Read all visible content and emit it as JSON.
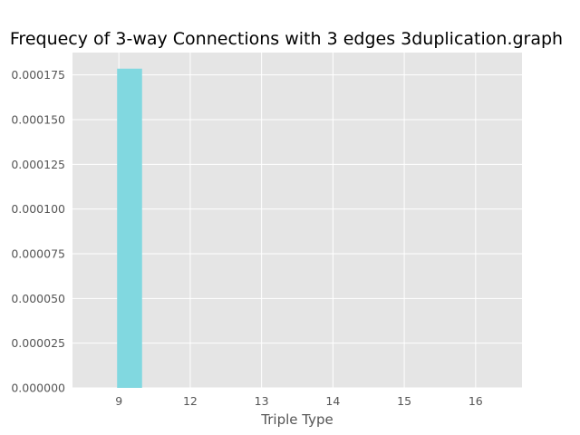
{
  "chart_data": {
    "type": "bar",
    "title": "Frequecy of 3-way Connections with 3 edges 3duplication.graph",
    "xlabel": "Triple Type",
    "ylabel": "",
    "categories": [
      "9",
      "12",
      "13",
      "14",
      "15",
      "16"
    ],
    "series": [
      {
        "values": [
          0.0001785,
          0,
          0,
          0,
          0,
          0
        ]
      }
    ],
    "x_ticks": [
      "9",
      "12",
      "13",
      "14",
      "15",
      "16"
    ],
    "y_ticks": [
      "0.000000",
      "0.000025",
      "0.000050",
      "0.000075",
      "0.000100",
      "0.000125",
      "0.000150",
      "0.000175"
    ],
    "ylim": [
      0,
      0.0001875
    ],
    "grid": true,
    "legend": "none",
    "colors": {
      "bar": "#81d8e0",
      "plot_background": "#e5e5e5",
      "grid": "#ffffff",
      "tick_text": "#555555",
      "title_text": "#000000"
    }
  }
}
